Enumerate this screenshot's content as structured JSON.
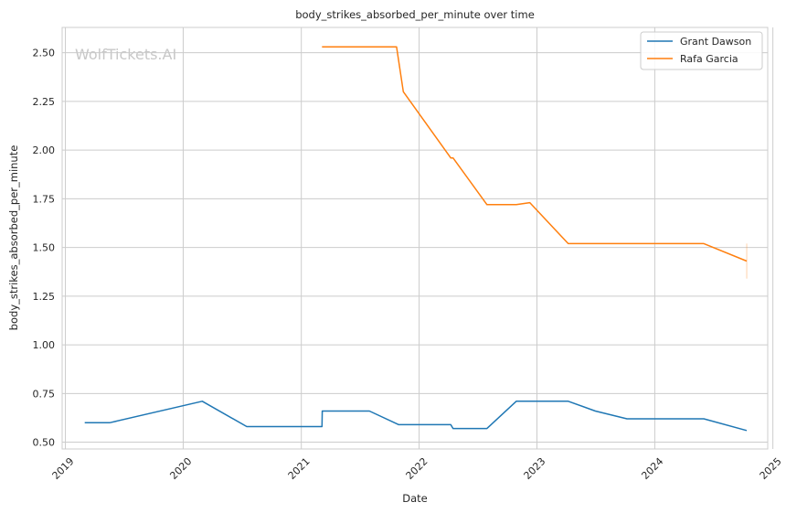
{
  "watermark": "WolfTickets.AI",
  "chart_data": {
    "type": "line",
    "title": "body_strikes_absorbed_per_minute over time",
    "xlabel": "Date",
    "ylabel": "body_strikes_absorbed_per_minute",
    "xlim": [
      "2018-12-22",
      "2024-12-16"
    ],
    "ylim": [
      0.465,
      2.63
    ],
    "x_ticks": [
      "2019",
      "2020",
      "2021",
      "2022",
      "2023",
      "2024",
      "2025"
    ],
    "y_ticks": [
      "0.50",
      "0.75",
      "1.00",
      "1.25",
      "1.50",
      "1.75",
      "2.00",
      "2.25",
      "2.50"
    ],
    "grid": true,
    "legend": "top-right",
    "colors": {
      "Grant Dawson": "#1f77b4",
      "Rafa Garcia": "#ff7f0e",
      "grid": "#cccccc",
      "axes": "#cccccc"
    },
    "series": [
      {
        "name": "Grant Dawson",
        "x": [
          "2019-03-02",
          "2019-05-18",
          "2020-02-29",
          "2020-07-16",
          "2021-03-06",
          "2021-03-07",
          "2021-07-31",
          "2021-10-30",
          "2022-04-09",
          "2022-04-16",
          "2022-07-30",
          "2022-10-29",
          "2023-04-08",
          "2023-07-01",
          "2023-10-07",
          "2024-06-01",
          "2024-10-12"
        ],
        "y": [
          0.6,
          0.6,
          0.71,
          0.58,
          0.58,
          0.66,
          0.66,
          0.59,
          0.59,
          0.57,
          0.57,
          0.71,
          0.71,
          0.66,
          0.62,
          0.62,
          0.56
        ]
      },
      {
        "name": "Rafa Garcia",
        "x": [
          "2021-03-06",
          "2021-10-23",
          "2021-11-13",
          "2022-04-09",
          "2022-04-16",
          "2022-07-30",
          "2022-10-29",
          "2022-12-10",
          "2023-04-08",
          "2024-06-01",
          "2024-10-12"
        ],
        "y": [
          2.53,
          2.53,
          2.3,
          1.96,
          1.96,
          1.72,
          1.72,
          1.73,
          1.52,
          1.52,
          1.43
        ]
      }
    ]
  }
}
